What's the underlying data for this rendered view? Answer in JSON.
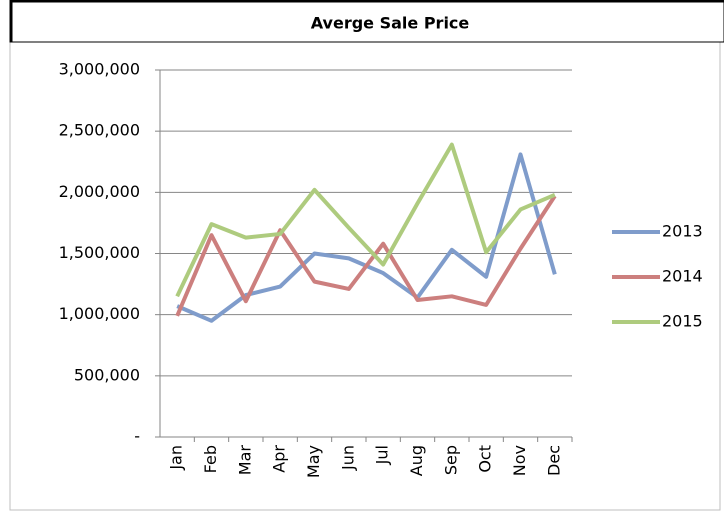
{
  "chart_data": {
    "type": "line",
    "title": "Averge Sale Price",
    "categories": [
      "Jan",
      "Feb",
      "Mar",
      "Apr",
      "May",
      "Jun",
      "Jul",
      "Aug",
      "Sep",
      "Oct",
      "Nov",
      "Dec"
    ],
    "series": [
      {
        "name": "2013",
        "color": "#7f9ccb",
        "values": [
          1070000,
          950000,
          1160000,
          1230000,
          1500000,
          1460000,
          1340000,
          1140000,
          1530000,
          1310000,
          2310000,
          1330000
        ]
      },
      {
        "name": "2014",
        "color": "#cc7f7e",
        "values": [
          990000,
          1650000,
          1110000,
          1690000,
          1270000,
          1210000,
          1580000,
          1120000,
          1150000,
          1080000,
          1540000,
          1970000
        ]
      },
      {
        "name": "2015",
        "color": "#aecb7e",
        "values": [
          1150000,
          1740000,
          1630000,
          1660000,
          2020000,
          1710000,
          1410000,
          1910000,
          2390000,
          1510000,
          1860000,
          1980000
        ]
      }
    ],
    "ylim": [
      0,
      3000000
    ],
    "yticks": [
      {
        "value": 0,
        "label": "-"
      },
      {
        "value": 500000,
        "label": "500,000"
      },
      {
        "value": 1000000,
        "label": "1,000,000"
      },
      {
        "value": 1500000,
        "label": "1,500,000"
      },
      {
        "value": 2000000,
        "label": "2,000,000"
      },
      {
        "value": 2500000,
        "label": "2,500,000"
      },
      {
        "value": 3000000,
        "label": "3,000,000"
      }
    ],
    "grid": true,
    "legend": "right"
  }
}
